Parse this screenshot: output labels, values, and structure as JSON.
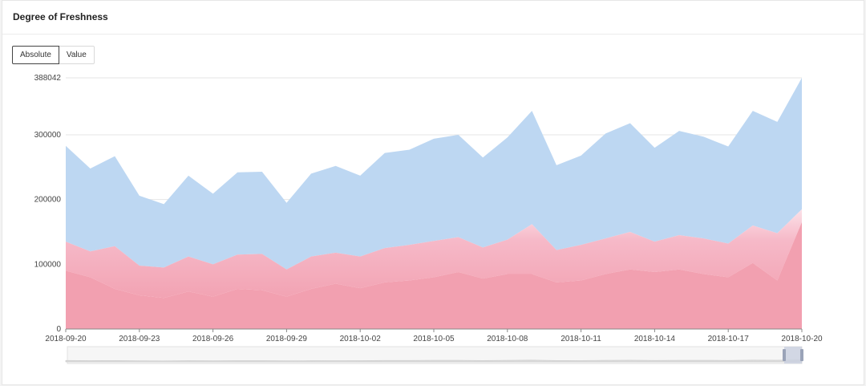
{
  "header": {
    "title": "Degree of Freshness"
  },
  "toggle": {
    "options": [
      "Absolute",
      "Value"
    ],
    "selected": "Absolute"
  },
  "colors": {
    "top_series": "#bdd7f2",
    "base_series": "#f2a0b0",
    "gridline": "#e6e6e6",
    "slider_handle": "#c9cfe0"
  },
  "chart_data": {
    "type": "area",
    "stacked": true,
    "xlabel": "",
    "ylabel": "",
    "ylim": [
      0,
      388042
    ],
    "y_ticks": [
      "0",
      "100000",
      "200000",
      "300000",
      "388042"
    ],
    "x_tick_labels": [
      "2018-09-20",
      "2018-09-23",
      "2018-09-26",
      "2018-09-29",
      "2018-10-02",
      "2018-10-05",
      "2018-10-08",
      "2018-10-11",
      "2018-10-14",
      "2018-10-17",
      "2018-10-20"
    ],
    "x_range": [
      "2018-09-20",
      "2018-10-20"
    ],
    "grid": true,
    "totals": [
      {
        "x": "2018-09-20",
        "y": 283000
      },
      {
        "x": "2018-09-21",
        "y": 248000
      },
      {
        "x": "2018-09-22",
        "y": 267000
      },
      {
        "x": "2018-09-23",
        "y": 206000
      },
      {
        "x": "2018-09-24",
        "y": 193000
      },
      {
        "x": "2018-09-25",
        "y": 237000
      },
      {
        "x": "2018-09-26",
        "y": 209000
      },
      {
        "x": "2018-09-27",
        "y": 242000
      },
      {
        "x": "2018-09-28",
        "y": 243000
      },
      {
        "x": "2018-09-29",
        "y": 195000
      },
      {
        "x": "2018-09-30",
        "y": 240000
      },
      {
        "x": "2018-10-01",
        "y": 252000
      },
      {
        "x": "2018-10-02",
        "y": 237000
      },
      {
        "x": "2018-10-03",
        "y": 272000
      },
      {
        "x": "2018-10-04",
        "y": 277000
      },
      {
        "x": "2018-10-05",
        "y": 294000
      },
      {
        "x": "2018-10-06",
        "y": 300000
      },
      {
        "x": "2018-10-07",
        "y": 265000
      },
      {
        "x": "2018-10-08",
        "y": 296000
      },
      {
        "x": "2018-10-09",
        "y": 337000
      },
      {
        "x": "2018-10-10",
        "y": 253000
      },
      {
        "x": "2018-10-11",
        "y": 268000
      },
      {
        "x": "2018-10-12",
        "y": 302000
      },
      {
        "x": "2018-10-13",
        "y": 318000
      },
      {
        "x": "2018-10-14",
        "y": 280000
      },
      {
        "x": "2018-10-15",
        "y": 306000
      },
      {
        "x": "2018-10-16",
        "y": 297000
      },
      {
        "x": "2018-10-17",
        "y": 282000
      },
      {
        "x": "2018-10-18",
        "y": 337000
      },
      {
        "x": "2018-10-19",
        "y": 320000
      },
      {
        "x": "2018-10-20",
        "y": 388042
      }
    ],
    "lower_band_top": [
      135000,
      120000,
      128000,
      98000,
      95000,
      112000,
      100000,
      115000,
      116000,
      92000,
      112000,
      118000,
      112000,
      125000,
      130000,
      136000,
      142000,
      126000,
      138000,
      162000,
      122000,
      130000,
      140000,
      150000,
      135000,
      145000,
      140000,
      132000,
      160000,
      148000,
      185000
    ],
    "base_layer": [
      90000,
      80000,
      62000,
      52000,
      48000,
      58000,
      50000,
      62000,
      60000,
      50000,
      62000,
      70000,
      63000,
      72000,
      75000,
      80000,
      88000,
      78000,
      85000,
      85000,
      72000,
      75000,
      85000,
      92000,
      88000,
      92000,
      85000,
      80000,
      102000,
      75000,
      165000
    ]
  }
}
